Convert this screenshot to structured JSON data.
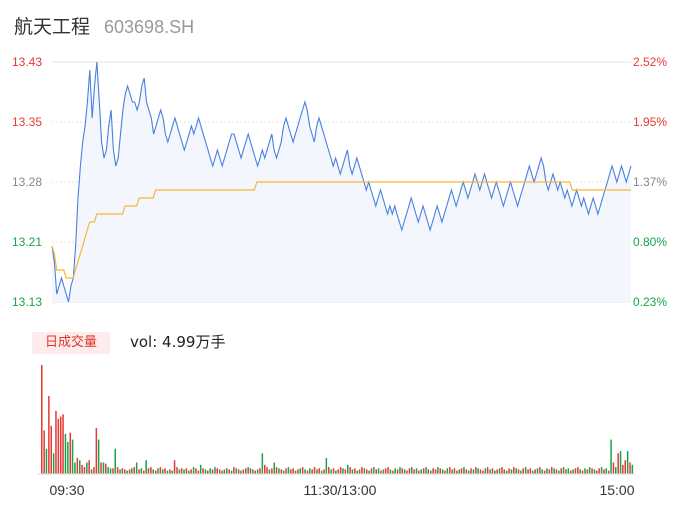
{
  "stock": {
    "name": "航天工程",
    "code": "603698.SH"
  },
  "volume_panel": {
    "badge": "日成交量",
    "label": "vol: 4.99万手"
  },
  "colors": {
    "up": "#e53935",
    "down": "#1aa34a",
    "price_line": "#4a7fe0",
    "avg_line": "#f7b733",
    "area": "#f3f6fc",
    "grid": "#e6e6e6"
  },
  "chart_data": {
    "type": "line",
    "x_ticks": [
      "09:30",
      "11:30/13:00",
      "15:00"
    ],
    "y_left_ticks": [
      "13.43",
      "13.35",
      "13.28",
      "13.21",
      "13.13"
    ],
    "y_right_ticks": [
      "2.52%",
      "1.95%",
      "1.37%",
      "0.80%",
      "0.23%"
    ],
    "ylim": [
      13.13,
      13.43
    ],
    "price_series": [
      13.2,
      13.18,
      13.14,
      13.15,
      13.16,
      13.15,
      13.14,
      13.13,
      13.15,
      13.16,
      13.2,
      13.26,
      13.3,
      13.33,
      13.35,
      13.38,
      13.42,
      13.36,
      13.4,
      13.43,
      13.38,
      13.33,
      13.31,
      13.32,
      13.35,
      13.37,
      13.32,
      13.3,
      13.31,
      13.34,
      13.37,
      13.39,
      13.4,
      13.39,
      13.38,
      13.38,
      13.37,
      13.38,
      13.4,
      13.41,
      13.38,
      13.37,
      13.36,
      13.34,
      13.35,
      13.36,
      13.37,
      13.36,
      13.34,
      13.33,
      13.34,
      13.35,
      13.36,
      13.35,
      13.34,
      13.33,
      13.32,
      13.33,
      13.34,
      13.35,
      13.34,
      13.35,
      13.36,
      13.35,
      13.34,
      13.33,
      13.32,
      13.31,
      13.3,
      13.31,
      13.32,
      13.31,
      13.3,
      13.31,
      13.32,
      13.33,
      13.34,
      13.34,
      13.33,
      13.32,
      13.31,
      13.32,
      13.33,
      13.34,
      13.33,
      13.32,
      13.31,
      13.3,
      13.31,
      13.32,
      13.31,
      13.32,
      13.33,
      13.34,
      13.32,
      13.31,
      13.32,
      13.33,
      13.35,
      13.36,
      13.35,
      13.34,
      13.33,
      13.34,
      13.35,
      13.36,
      13.37,
      13.38,
      13.37,
      13.35,
      13.34,
      13.33,
      13.35,
      13.36,
      13.35,
      13.34,
      13.33,
      13.32,
      13.31,
      13.3,
      13.31,
      13.3,
      13.29,
      13.3,
      13.31,
      13.32,
      13.3,
      13.29,
      13.3,
      13.31,
      13.3,
      13.29,
      13.28,
      13.27,
      13.28,
      13.27,
      13.26,
      13.25,
      13.26,
      13.27,
      13.26,
      13.25,
      13.24,
      13.25,
      13.24,
      13.25,
      13.24,
      13.23,
      13.22,
      13.23,
      13.24,
      13.25,
      13.26,
      13.25,
      13.24,
      13.23,
      13.24,
      13.25,
      13.24,
      13.23,
      13.22,
      13.23,
      13.24,
      13.25,
      13.24,
      13.23,
      13.24,
      13.25,
      13.26,
      13.27,
      13.26,
      13.25,
      13.26,
      13.27,
      13.28,
      13.27,
      13.26,
      13.27,
      13.28,
      13.29,
      13.28,
      13.27,
      13.28,
      13.29,
      13.28,
      13.27,
      13.26,
      13.27,
      13.28,
      13.27,
      13.26,
      13.25,
      13.26,
      13.27,
      13.28,
      13.27,
      13.26,
      13.25,
      13.26,
      13.27,
      13.28,
      13.29,
      13.3,
      13.29,
      13.28,
      13.29,
      13.3,
      13.31,
      13.3,
      13.28,
      13.27,
      13.28,
      13.29,
      13.28,
      13.27,
      13.28,
      13.27,
      13.26,
      13.27,
      13.26,
      13.25,
      13.26,
      13.27,
      13.26,
      13.25,
      13.26,
      13.25,
      13.24,
      13.25,
      13.26,
      13.25,
      13.24,
      13.25,
      13.26,
      13.27,
      13.28,
      13.29,
      13.3,
      13.29,
      13.28,
      13.29,
      13.3,
      13.29,
      13.28,
      13.29,
      13.3
    ],
    "avg_series": [
      13.2,
      13.19,
      13.17,
      13.17,
      13.17,
      13.17,
      13.16,
      13.16,
      13.16,
      13.16,
      13.17,
      13.18,
      13.19,
      13.2,
      13.21,
      13.22,
      13.23,
      13.23,
      13.23,
      13.24,
      13.24,
      13.24,
      13.24,
      13.24,
      13.24,
      13.24,
      13.24,
      13.24,
      13.24,
      13.24,
      13.24,
      13.25,
      13.25,
      13.25,
      13.25,
      13.25,
      13.25,
      13.26,
      13.26,
      13.26,
      13.26,
      13.26,
      13.26,
      13.26,
      13.27,
      13.27,
      13.27,
      13.27,
      13.27,
      13.27,
      13.27,
      13.27,
      13.27,
      13.27,
      13.27,
      13.27,
      13.27,
      13.27,
      13.27,
      13.27,
      13.27,
      13.27,
      13.27,
      13.27,
      13.27,
      13.27,
      13.27,
      13.27,
      13.27,
      13.27,
      13.27,
      13.27,
      13.27,
      13.27,
      13.27,
      13.27,
      13.27,
      13.27,
      13.27,
      13.27,
      13.27,
      13.27,
      13.27,
      13.27,
      13.27,
      13.27,
      13.27,
      13.28,
      13.28,
      13.28,
      13.28,
      13.28,
      13.28,
      13.28,
      13.28,
      13.28,
      13.28,
      13.28,
      13.28,
      13.28,
      13.28,
      13.28,
      13.28,
      13.28,
      13.28,
      13.28,
      13.28,
      13.28,
      13.28,
      13.28,
      13.28,
      13.28,
      13.28,
      13.28,
      13.28,
      13.28,
      13.28,
      13.28,
      13.28,
      13.28,
      13.28,
      13.28,
      13.28,
      13.28,
      13.28,
      13.28,
      13.28,
      13.28,
      13.28,
      13.28,
      13.28,
      13.28,
      13.28,
      13.28,
      13.28,
      13.28,
      13.28,
      13.28,
      13.28,
      13.28,
      13.28,
      13.28,
      13.28,
      13.28,
      13.28,
      13.28,
      13.28,
      13.28,
      13.28,
      13.28,
      13.28,
      13.28,
      13.28,
      13.28,
      13.28,
      13.28,
      13.28,
      13.28,
      13.28,
      13.28,
      13.28,
      13.28,
      13.28,
      13.28,
      13.28,
      13.28,
      13.28,
      13.28,
      13.28,
      13.28,
      13.28,
      13.28,
      13.28,
      13.28,
      13.28,
      13.28,
      13.28,
      13.28,
      13.28,
      13.28,
      13.28,
      13.28,
      13.28,
      13.28,
      13.28,
      13.28,
      13.28,
      13.28,
      13.28,
      13.28,
      13.28,
      13.28,
      13.28,
      13.28,
      13.28,
      13.28,
      13.28,
      13.28,
      13.28,
      13.28,
      13.28,
      13.28,
      13.28,
      13.28,
      13.28,
      13.28,
      13.28,
      13.28,
      13.28,
      13.28,
      13.28,
      13.28,
      13.28,
      13.28,
      13.28,
      13.28,
      13.28,
      13.28,
      13.28,
      13.28,
      13.28,
      13.27,
      13.27,
      13.27,
      13.27,
      13.27,
      13.27,
      13.27,
      13.27,
      13.27,
      13.27,
      13.27,
      13.27,
      13.27,
      13.27,
      13.27,
      13.27,
      13.27,
      13.27,
      13.27,
      13.27,
      13.27,
      13.27,
      13.27,
      13.27,
      13.27,
      13.27
    ],
    "volume_series": [
      95,
      38,
      22,
      68,
      42,
      18,
      55,
      48,
      50,
      52,
      35,
      28,
      36,
      30,
      10,
      14,
      12,
      8,
      6,
      10,
      12,
      4,
      6,
      40,
      30,
      10,
      10,
      9,
      6,
      5,
      5,
      22,
      6,
      4,
      5,
      4,
      3,
      4,
      5,
      6,
      10,
      4,
      5,
      3,
      12,
      5,
      6,
      4,
      3,
      5,
      6,
      4,
      5,
      3,
      4,
      3,
      12,
      6,
      4,
      5,
      4,
      5,
      3,
      4,
      6,
      5,
      3,
      8,
      5,
      4,
      3,
      5,
      4,
      6,
      5,
      4,
      3,
      4,
      5,
      4,
      3,
      6,
      5,
      4,
      3,
      4,
      5,
      6,
      5,
      4,
      3,
      4,
      5,
      18,
      8,
      6,
      4,
      5,
      10,
      6,
      5,
      4,
      3,
      5,
      6,
      4,
      5,
      3,
      4,
      5,
      6,
      4,
      3,
      5,
      4,
      6,
      4,
      5,
      3,
      4,
      14,
      6,
      4,
      5,
      3,
      4,
      6,
      5,
      4,
      8,
      6,
      4,
      5,
      3,
      4,
      6,
      5,
      4,
      3,
      5,
      6,
      4,
      5,
      3,
      4,
      5,
      6,
      4,
      3,
      5,
      4,
      6,
      5,
      4,
      3,
      5,
      6,
      4,
      5,
      3,
      4,
      5,
      6,
      4,
      3,
      5,
      4,
      6,
      5,
      4,
      3,
      5,
      6,
      4,
      5,
      3,
      4,
      5,
      6,
      4,
      3,
      5,
      4,
      6,
      5,
      4,
      3,
      5,
      6,
      4,
      5,
      3,
      4,
      5,
      6,
      4,
      3,
      5,
      4,
      6,
      5,
      4,
      3,
      5,
      6,
      4,
      5,
      3,
      4,
      5,
      6,
      4,
      3,
      5,
      4,
      6,
      5,
      4,
      3,
      5,
      6,
      4,
      5,
      3,
      4,
      5,
      6,
      4,
      3,
      5,
      4,
      6,
      5,
      4,
      3,
      5,
      6,
      4,
      5,
      3,
      30,
      10,
      6,
      18,
      20,
      8,
      12,
      20,
      10,
      8
    ],
    "volume_up": [
      true,
      true,
      false,
      true,
      true,
      false,
      true,
      true,
      true,
      true,
      false,
      false,
      true,
      false,
      false,
      true,
      false,
      true,
      true,
      false,
      true,
      false,
      true,
      true,
      false,
      true,
      false,
      true,
      false,
      false,
      true,
      false,
      true,
      false,
      true,
      true,
      false,
      true,
      false,
      true,
      false,
      true,
      false,
      true,
      false,
      true,
      true,
      false,
      true,
      false,
      true,
      false,
      true,
      false,
      true,
      false,
      true,
      true,
      false,
      true,
      false,
      true,
      false,
      true,
      false,
      true,
      true,
      false,
      true,
      false,
      true,
      false,
      true,
      false,
      true,
      true,
      false,
      true,
      false,
      true,
      false,
      true,
      false,
      true,
      false,
      true,
      true,
      false,
      true,
      false,
      true,
      false,
      true,
      false,
      true,
      true,
      false,
      true,
      false,
      true,
      false,
      true,
      false,
      true,
      false,
      true,
      true,
      false,
      true,
      false,
      true,
      false,
      true,
      false,
      true,
      true,
      false,
      true,
      false,
      true,
      false,
      true,
      false,
      true,
      false,
      true,
      true,
      false,
      true,
      false,
      true,
      false,
      true,
      false,
      true,
      true,
      false,
      true,
      false,
      true,
      false,
      true,
      false,
      true,
      false,
      true,
      true,
      false,
      true,
      false,
      true,
      false,
      true,
      false,
      true,
      true,
      false,
      true,
      false,
      true,
      false,
      true,
      false,
      true,
      false,
      true,
      true,
      false,
      true,
      false,
      true,
      false,
      true,
      false,
      true,
      true,
      false,
      true,
      false,
      true,
      false,
      true,
      false,
      true,
      false,
      true,
      true,
      false,
      true,
      false,
      true,
      false,
      true,
      false,
      true,
      true,
      false,
      true,
      false,
      true,
      false,
      true,
      false,
      true,
      false,
      true,
      true,
      false,
      true,
      false,
      true,
      false,
      true,
      false,
      true,
      true,
      false,
      true,
      false,
      true,
      false,
      true,
      false,
      true,
      false,
      true,
      true,
      false,
      true,
      false,
      true,
      false,
      true,
      false,
      true,
      true,
      false,
      true,
      false,
      true,
      false,
      true,
      false,
      true,
      false,
      true,
      true,
      false,
      true,
      false,
      true,
      false,
      true,
      false,
      true,
      true,
      false,
      true,
      false,
      true,
      false,
      true,
      false,
      true,
      false
    ]
  }
}
